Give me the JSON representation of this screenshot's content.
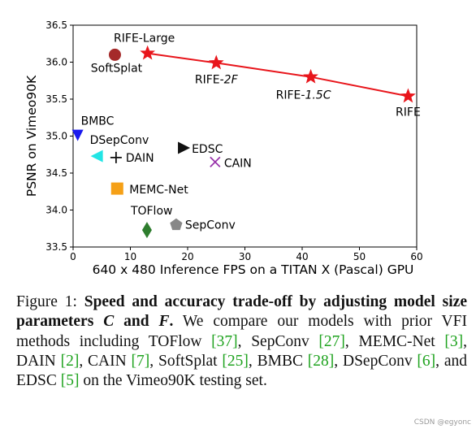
{
  "chart_data": {
    "type": "scatter",
    "xlabel": "640 x 480 Inference FPS on a TITAN X (Pascal) GPU",
    "ylabel": "PSNR on Vimeo90K",
    "xlim": [
      0,
      60
    ],
    "ylim": [
      33.5,
      36.5
    ],
    "xticks": [
      0,
      10,
      20,
      30,
      40,
      50,
      60
    ],
    "yticks": [
      33.5,
      34.0,
      34.5,
      35.0,
      35.5,
      36.0,
      36.5
    ],
    "grid": false,
    "rife_line": {
      "color": "#e8151b",
      "points": [
        {
          "label": "RIFE-Large",
          "x": 13.0,
          "y": 36.12
        },
        {
          "label_prefix": "RIFE-",
          "label_italic": "2F",
          "x": 25.0,
          "y": 35.99
        },
        {
          "label_prefix": "RIFE-",
          "label_italic": "1.5C",
          "x": 41.5,
          "y": 35.8
        },
        {
          "label": "RIFE",
          "x": 58.5,
          "y": 35.54
        }
      ]
    },
    "methods": [
      {
        "label": "SoftSplat",
        "x": 7.3,
        "y": 36.1,
        "marker": "circle",
        "color": "#a52a2a"
      },
      {
        "label": "BMBC",
        "x": 0.8,
        "y": 35.01,
        "marker": "triangle-down",
        "color": "#1a1aee"
      },
      {
        "label": "DSepConv",
        "x": 4.2,
        "y": 34.73,
        "marker": "triangle-left",
        "color": "#22e5e5"
      },
      {
        "label": "DAIN",
        "x": 7.5,
        "y": 34.71,
        "marker": "plus",
        "color": "#111111"
      },
      {
        "label": "EDSC",
        "x": 19.3,
        "y": 34.84,
        "marker": "triangle-right",
        "color": "#111111"
      },
      {
        "label": "CAIN",
        "x": 24.8,
        "y": 34.65,
        "marker": "x",
        "color": "#9933aa"
      },
      {
        "label": "MEMC-Net",
        "x": 7.7,
        "y": 34.29,
        "marker": "square",
        "color": "#f5a017"
      },
      {
        "label": "TOFlow",
        "x": 12.9,
        "y": 33.73,
        "marker": "diamond",
        "color": "#2e7d2e"
      },
      {
        "label": "SepConv",
        "x": 18.0,
        "y": 33.8,
        "marker": "pentagon",
        "color": "#888888"
      }
    ]
  },
  "caption": {
    "prefix": "Figure 1: ",
    "bold_a": "Speed and accuracy trade-off by adjusting model size parameters ",
    "var_c": "C",
    "bold_and": " and ",
    "var_f": "F",
    "bold_end": ".",
    "t1": " We compare our models with prior VFI methods including TOFlow ",
    "r_toflow": "[37]",
    "t2": ", SepConv ",
    "r_sepconv": "[27]",
    "t3": ", MEMC-Net ",
    "r_memc": "[3]",
    "t4": ", DAIN ",
    "r_dain": "[2]",
    "t5": ", CAIN ",
    "r_cain": "[7]",
    "t6": ", SoftSplat ",
    "r_softsplat": "[25]",
    "t7": ", BMBC ",
    "r_bmbc": "[28]",
    "t8": ", DSepConv ",
    "r_dsepconv": "[6]",
    "t9": ", and EDSC ",
    "r_edsc": "[5]",
    "t10": " on the Vimeo90K testing set."
  },
  "watermark": "CSDN @egyonc"
}
